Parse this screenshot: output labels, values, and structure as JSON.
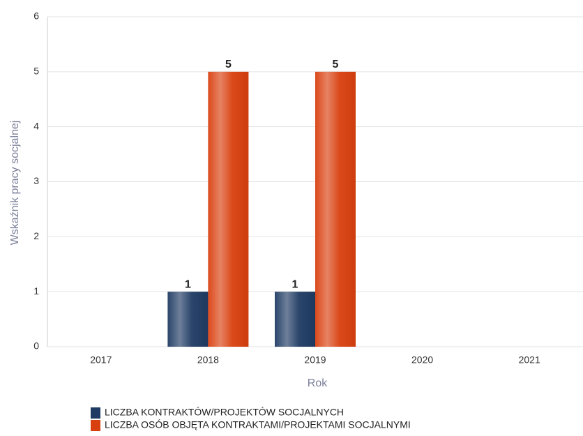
{
  "chart_data": {
    "type": "bar",
    "x_label": "Rok",
    "y_label": "Wskaźnik pracy socjalnej",
    "categories": [
      "2017",
      "2018",
      "2019",
      "2020",
      "2021"
    ],
    "series": [
      {
        "name": "LICZBA KONTRAKTÓW/PROJEKTÓW SOCJALNYCH",
        "color": "#1f3b63",
        "values": [
          null,
          1,
          1,
          null,
          null
        ]
      },
      {
        "name": "LICZBA OSÓB OBJĘTA KONTRAKTAMI/PROJEKTAMI SOCJALNYMI",
        "color": "#d9400f",
        "values": [
          null,
          5,
          5,
          null,
          null
        ]
      }
    ],
    "ylim": [
      0,
      6
    ],
    "yticks": [
      0,
      1,
      2,
      3,
      4,
      5,
      6
    ],
    "grid": true
  }
}
